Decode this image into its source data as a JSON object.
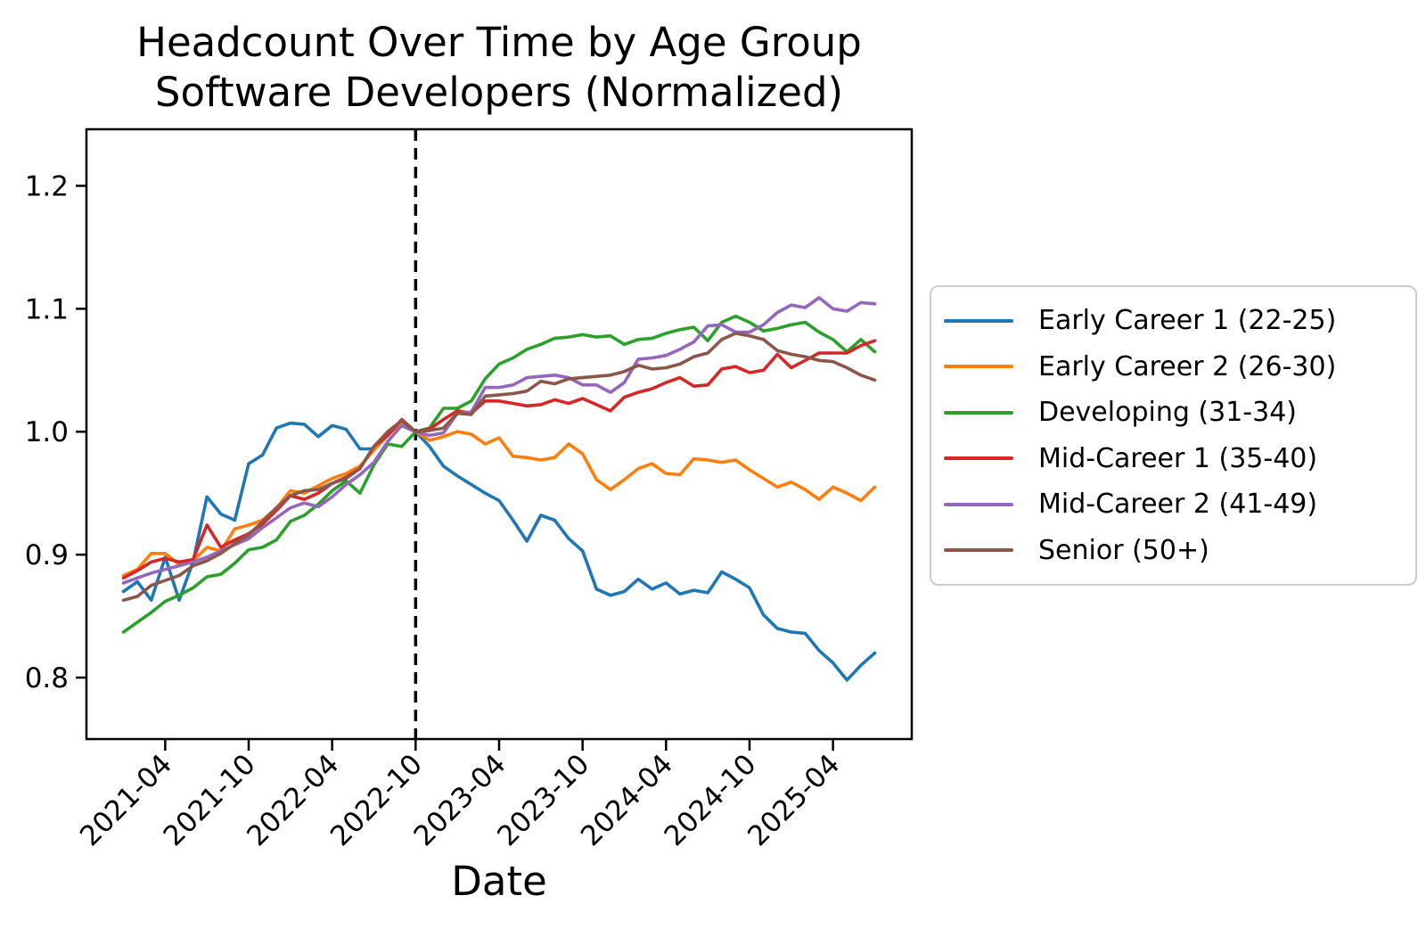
{
  "title": {
    "line1": "Headcount Over Time by Age Group",
    "line2": "Software Developers (Normalized)"
  },
  "chart_data": {
    "type": "line",
    "title": "Headcount Over Time by Age Group Software Developers (Normalized)",
    "xlabel": "Date",
    "ylabel": "",
    "background_color": "#ffffff",
    "grid": false,
    "legend_position": "center right outside",
    "legend_border_color": "#cccccc",
    "ylim": [
      0.75,
      1.246
    ],
    "yticks": [
      0.8,
      0.9,
      1.0,
      1.1,
      1.2
    ],
    "xtick_labels": [
      "2021-04",
      "2021-10",
      "2022-04",
      "2022-10",
      "2023-04",
      "2023-10",
      "2024-04",
      "2024-10",
      "2025-04"
    ],
    "xtick_month_indices": [
      3,
      9,
      15,
      21,
      27,
      33,
      39,
      45,
      51
    ],
    "vline": {
      "x": "2022-10",
      "style": "dashed",
      "color": "#000000"
    },
    "x": [
      "2021-01",
      "2021-02",
      "2021-03",
      "2021-04",
      "2021-05",
      "2021-06",
      "2021-07",
      "2021-08",
      "2021-09",
      "2021-10",
      "2021-11",
      "2021-12",
      "2022-01",
      "2022-02",
      "2022-03",
      "2022-04",
      "2022-05",
      "2022-06",
      "2022-07",
      "2022-08",
      "2022-09",
      "2022-10",
      "2022-11",
      "2022-12",
      "2023-01",
      "2023-02",
      "2023-03",
      "2023-04",
      "2023-05",
      "2023-06",
      "2023-07",
      "2023-08",
      "2023-09",
      "2023-10",
      "2023-11",
      "2023-12",
      "2024-01",
      "2024-02",
      "2024-03",
      "2024-04",
      "2024-05",
      "2024-06",
      "2024-07",
      "2024-08",
      "2024-09",
      "2024-10",
      "2024-11",
      "2024-12",
      "2025-01",
      "2025-02",
      "2025-03",
      "2025-04",
      "2025-05",
      "2025-06",
      "2025-07"
    ],
    "series": [
      {
        "name": "Early Career 1 (22-25)",
        "color": "#1f77b4",
        "values": [
          0.87,
          0.878,
          0.863,
          0.898,
          0.863,
          0.894,
          0.947,
          0.933,
          0.928,
          0.974,
          0.981,
          1.003,
          1.007,
          1.006,
          0.996,
          1.005,
          1.002,
          0.986,
          0.986,
          1.0,
          1.005,
          1.0,
          0.988,
          0.972,
          0.964,
          0.957,
          0.95,
          0.944,
          0.928,
          0.911,
          0.932,
          0.928,
          0.913,
          0.903,
          0.872,
          0.867,
          0.87,
          0.88,
          0.872,
          0.877,
          0.868,
          0.871,
          0.869,
          0.886,
          0.88,
          0.873,
          0.851,
          0.84,
          0.837,
          0.836,
          0.822,
          0.812,
          0.798,
          0.81,
          0.82
        ]
      },
      {
        "name": "Early Career 2 (26-30)",
        "color": "#ff7f0e",
        "values": [
          0.883,
          0.888,
          0.901,
          0.901,
          0.892,
          0.895,
          0.906,
          0.903,
          0.921,
          0.924,
          0.928,
          0.938,
          0.952,
          0.95,
          0.956,
          0.962,
          0.966,
          0.972,
          0.985,
          0.997,
          1.008,
          1.0,
          0.993,
          0.996,
          1.0,
          0.998,
          0.99,
          0.995,
          0.98,
          0.979,
          0.977,
          0.979,
          0.99,
          0.982,
          0.961,
          0.953,
          0.961,
          0.97,
          0.974,
          0.966,
          0.965,
          0.978,
          0.977,
          0.975,
          0.977,
          0.969,
          0.962,
          0.955,
          0.959,
          0.953,
          0.945,
          0.955,
          0.95,
          0.944,
          0.955
        ]
      },
      {
        "name": "Developing (31-34)",
        "color": "#2ca02c",
        "values": [
          0.837,
          0.845,
          0.853,
          0.862,
          0.867,
          0.873,
          0.882,
          0.884,
          0.893,
          0.904,
          0.906,
          0.912,
          0.927,
          0.932,
          0.941,
          0.952,
          0.96,
          0.95,
          0.973,
          0.99,
          0.988,
          1.0,
          1.003,
          1.019,
          1.019,
          1.025,
          1.043,
          1.055,
          1.06,
          1.067,
          1.071,
          1.076,
          1.077,
          1.079,
          1.077,
          1.078,
          1.071,
          1.075,
          1.076,
          1.08,
          1.083,
          1.085,
          1.074,
          1.089,
          1.094,
          1.089,
          1.082,
          1.084,
          1.087,
          1.089,
          1.081,
          1.075,
          1.065,
          1.075,
          1.065
        ]
      },
      {
        "name": "Mid-Career 1 (35-40)",
        "color": "#d62728",
        "values": [
          0.881,
          0.887,
          0.894,
          0.897,
          0.894,
          0.896,
          0.924,
          0.906,
          0.912,
          0.917,
          0.925,
          0.936,
          0.948,
          0.945,
          0.95,
          0.958,
          0.963,
          0.97,
          0.988,
          0.997,
          1.01,
          1.0,
          1.002,
          1.01,
          1.017,
          1.015,
          1.025,
          1.025,
          1.023,
          1.021,
          1.022,
          1.026,
          1.023,
          1.027,
          1.022,
          1.017,
          1.028,
          1.032,
          1.035,
          1.04,
          1.044,
          1.037,
          1.038,
          1.051,
          1.053,
          1.048,
          1.05,
          1.063,
          1.052,
          1.058,
          1.064,
          1.064,
          1.064,
          1.07,
          1.074
        ]
      },
      {
        "name": "Mid-Career 2 (41-49)",
        "color": "#9467bd",
        "values": [
          0.877,
          0.881,
          0.885,
          0.888,
          0.891,
          0.894,
          0.898,
          0.903,
          0.908,
          0.913,
          0.922,
          0.93,
          0.938,
          0.942,
          0.939,
          0.947,
          0.957,
          0.965,
          0.975,
          0.992,
          1.005,
          1.0,
          0.997,
          0.999,
          1.015,
          1.016,
          1.036,
          1.036,
          1.038,
          1.044,
          1.045,
          1.046,
          1.044,
          1.038,
          1.038,
          1.032,
          1.04,
          1.059,
          1.06,
          1.062,
          1.067,
          1.073,
          1.086,
          1.087,
          1.081,
          1.081,
          1.087,
          1.097,
          1.103,
          1.101,
          1.109,
          1.1,
          1.098,
          1.105,
          1.104
        ]
      },
      {
        "name": "Senior (50+)",
        "color": "#8c564b",
        "values": [
          0.863,
          0.866,
          0.875,
          0.879,
          0.883,
          0.891,
          0.895,
          0.901,
          0.909,
          0.916,
          0.927,
          0.938,
          0.948,
          0.952,
          0.953,
          0.958,
          0.962,
          0.97,
          0.988,
          1.0,
          1.009,
          1.0,
          1.001,
          1.003,
          1.015,
          1.014,
          1.029,
          1.03,
          1.031,
          1.033,
          1.041,
          1.039,
          1.043,
          1.044,
          1.045,
          1.046,
          1.049,
          1.054,
          1.051,
          1.052,
          1.055,
          1.061,
          1.064,
          1.075,
          1.08,
          1.078,
          1.075,
          1.066,
          1.063,
          1.061,
          1.058,
          1.057,
          1.052,
          1.046,
          1.042
        ]
      }
    ]
  }
}
